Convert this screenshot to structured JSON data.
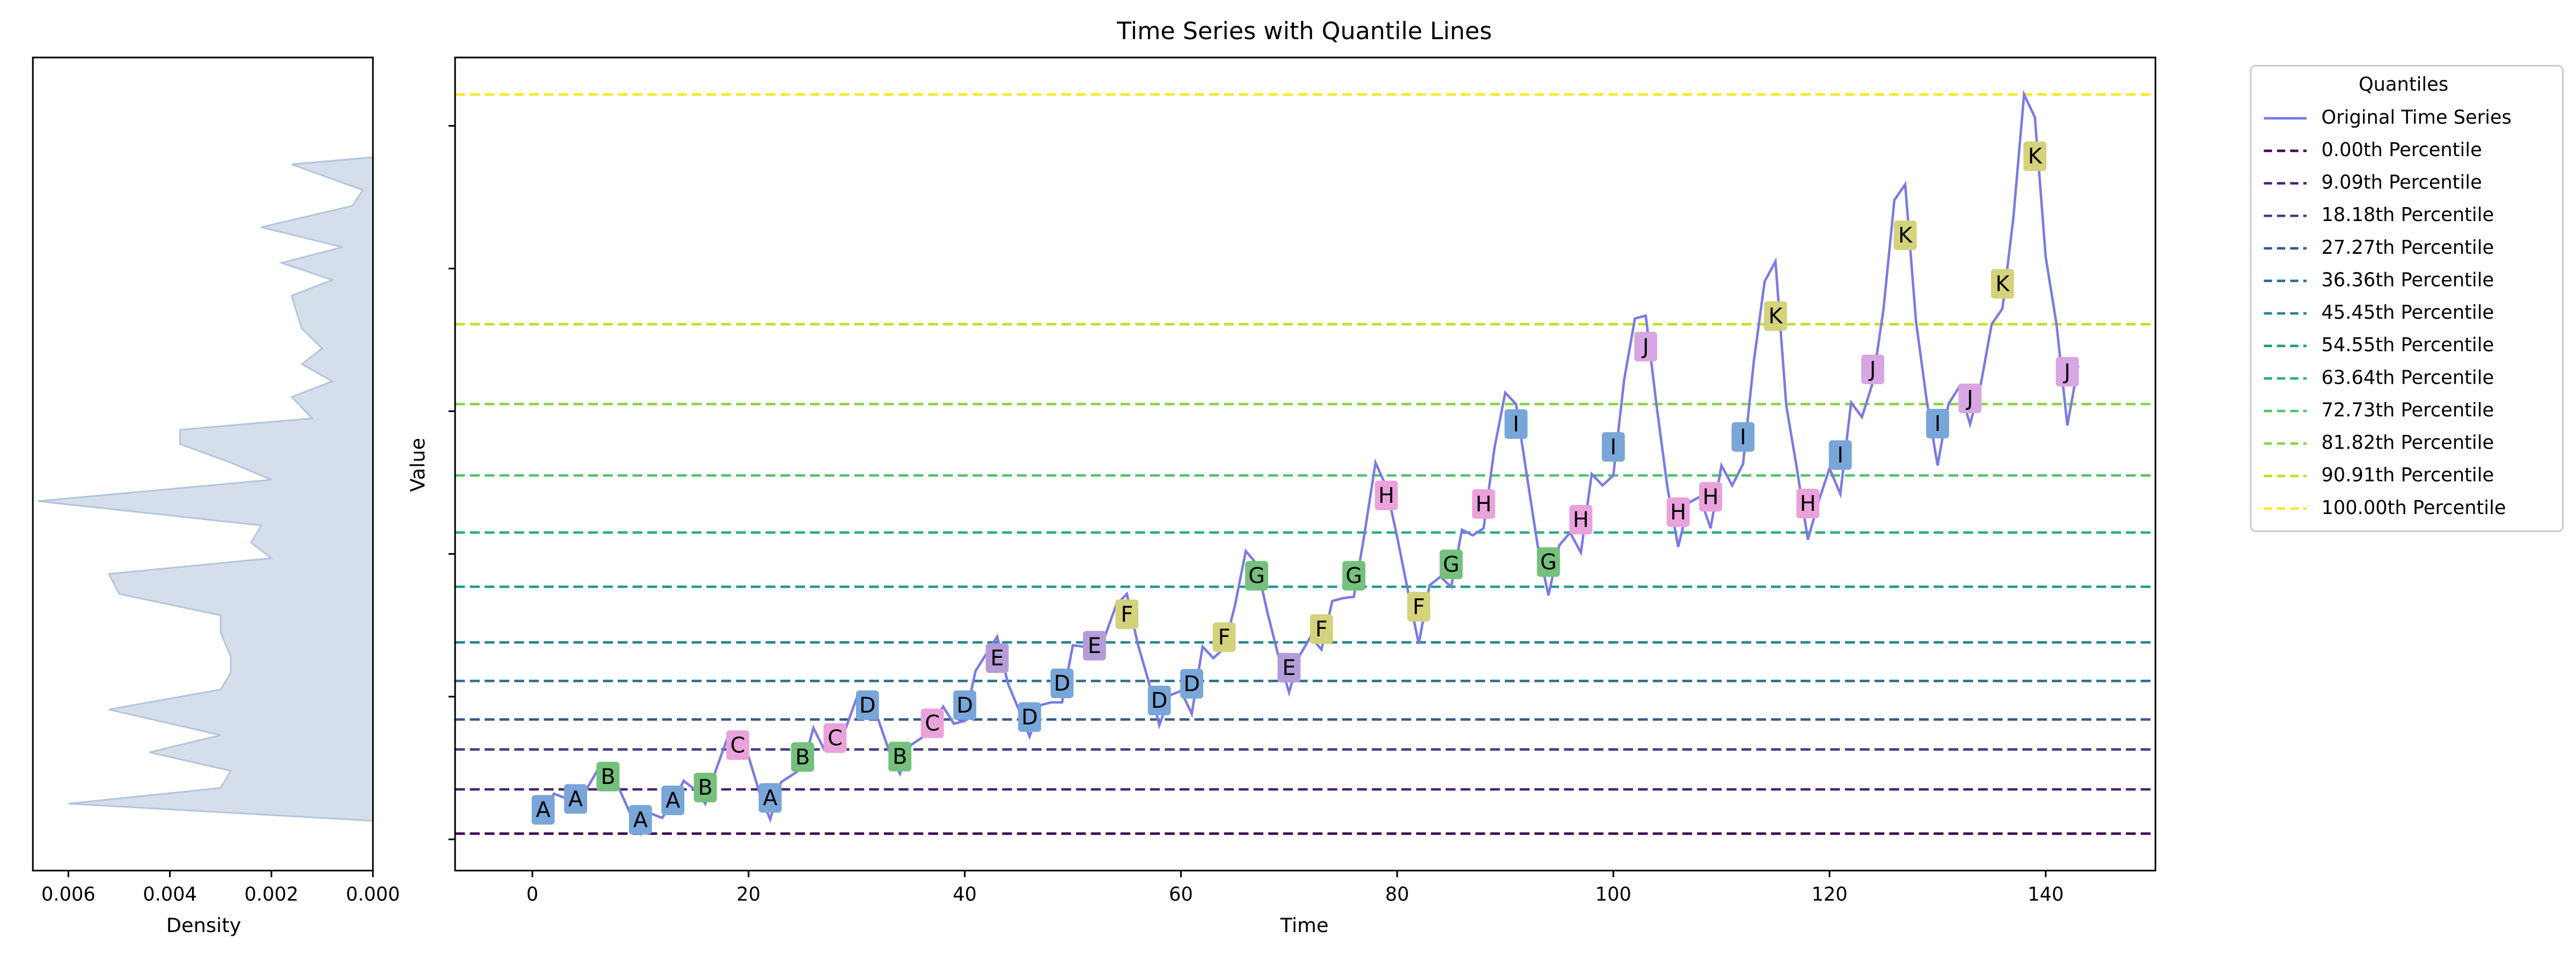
{
  "chart_data": [
    {
      "type": "density",
      "xlabel": "Density",
      "levels": [
        113,
        125,
        136,
        148,
        161,
        173,
        191,
        205,
        217,
        228,
        245,
        257,
        272,
        286,
        297,
        308,
        320,
        337,
        352,
        364,
        377,
        387,
        395,
        410,
        421,
        433,
        444,
        458,
        469,
        481,
        492,
        504,
        515,
        529,
        544,
        555,
        573,
        578
      ],
      "density": [
        0,
        0.006,
        0.003,
        0.0028,
        0.0044,
        0.003,
        0.0052,
        0.003,
        0.0028,
        0.0028,
        0.003,
        0.003,
        0.005,
        0.0052,
        0.002,
        0.0024,
        0.0022,
        0.0066,
        0.002,
        0.0028,
        0.0038,
        0.0038,
        0.0012,
        0.0016,
        0.0008,
        0.0014,
        0.001,
        0.0014,
        0.0015,
        0.0016,
        0.0008,
        0.0018,
        0.0006,
        0.0022,
        0.0004,
        0.0002,
        0.0016,
        0
      ],
      "color": "#d5dfeb",
      "edge_color": "#b4c5db",
      "xlim": [
        0.0067,
        0
      ],
      "xticks": [
        0.006,
        0.004,
        0.002,
        {
          "value": 0,
          "label": "0.000"
        }
      ]
    },
    {
      "type": "line",
      "title": "Time Series with Quantile Lines",
      "xlabel": "Time",
      "ylabel": "Value",
      "x": [
        0,
        1,
        2,
        3,
        4,
        5,
        6,
        7,
        8,
        9,
        10,
        11,
        12,
        13,
        14,
        15,
        16,
        17,
        18,
        19,
        20,
        21,
        22,
        23,
        24,
        25,
        26,
        27,
        28,
        29,
        30,
        31,
        32,
        33,
        34,
        35,
        36,
        37,
        38,
        39,
        40,
        41,
        42,
        43,
        44,
        45,
        46,
        47,
        48,
        49,
        50,
        51,
        52,
        53,
        54,
        55,
        56,
        57,
        58,
        59,
        60,
        61,
        62,
        63,
        64,
        65,
        66,
        67,
        68,
        69,
        70,
        71,
        72,
        73,
        74,
        75,
        76,
        77,
        78,
        79,
        80,
        81,
        82,
        83,
        84,
        85,
        86,
        87,
        88,
        89,
        90,
        91,
        92,
        93,
        94,
        95,
        96,
        97,
        98,
        99,
        100,
        101,
        102,
        103,
        104,
        105,
        106,
        107,
        108,
        109,
        110,
        111,
        112,
        113,
        114,
        115,
        116,
        117,
        118,
        119,
        120,
        121,
        122,
        123,
        124,
        125,
        126,
        127,
        128,
        129,
        130,
        131,
        132,
        133,
        134,
        135,
        136,
        137,
        138,
        139,
        140,
        141,
        142,
        143
      ],
      "series": [
        {
          "name": "Original Time Series",
          "color": "#7a7ae6",
          "values": [
            112,
            118,
            132,
            129,
            121,
            135,
            148,
            148,
            136,
            119,
            104,
            118,
            115,
            126,
            141,
            135,
            125,
            149,
            170,
            170,
            158,
            133,
            114,
            140,
            145,
            150,
            178,
            163,
            172,
            178,
            199,
            199,
            184,
            162,
            146,
            166,
            171,
            180,
            193,
            181,
            183,
            218,
            230,
            242,
            209,
            191,
            172,
            194,
            196,
            196,
            236,
            235,
            229,
            243,
            264,
            272,
            237,
            211,
            180,
            201,
            204,
            188,
            235,
            227,
            234,
            264,
            302,
            293,
            259,
            229,
            203,
            229,
            242,
            233,
            267,
            269,
            270,
            315,
            364,
            347,
            312,
            274,
            237,
            278,
            284,
            277,
            317,
            313,
            318,
            374,
            413,
            405,
            355,
            306,
            271,
            306,
            315,
            301,
            356,
            348,
            355,
            422,
            465,
            467,
            404,
            347,
            305,
            336,
            340,
            318,
            362,
            348,
            363,
            435,
            491,
            505,
            404,
            359,
            310,
            337,
            360,
            342,
            406,
            396,
            420,
            472,
            548,
            559,
            463,
            407,
            362,
            405,
            417,
            391,
            419,
            461,
            472,
            535,
            622,
            606,
            508,
            461,
            390,
            432
          ]
        }
      ],
      "legend_title": "Quantiles",
      "quantiles": [
        {
          "name": "0.00th Percentile",
          "value": 104,
          "color": "#440154"
        },
        {
          "name": "9.09th Percentile",
          "value": 135,
          "color": "#482173"
        },
        {
          "name": "18.18th Percentile",
          "value": 163,
          "color": "#433e85"
        },
        {
          "name": "27.27th Percentile",
          "value": 184,
          "color": "#38588c"
        },
        {
          "name": "36.36th Percentile",
          "value": 211,
          "color": "#2d708e"
        },
        {
          "name": "45.45th Percentile",
          "value": 238,
          "color": "#25858e"
        },
        {
          "name": "54.55th Percentile",
          "value": 277,
          "color": "#1e9b8a"
        },
        {
          "name": "63.64th Percentile",
          "value": 315,
          "color": "#2ab07f"
        },
        {
          "name": "72.73th Percentile",
          "value": 355,
          "color": "#52c569"
        },
        {
          "name": "81.82th Percentile",
          "value": 405,
          "color": "#86d549"
        },
        {
          "name": "90.91th Percentile",
          "value": 461,
          "color": "#c2df23"
        },
        {
          "name": "100.00th Percentile",
          "value": 622,
          "color": "#fde725"
        }
      ],
      "annotations": {
        "x": [
          1,
          4,
          7,
          10,
          13,
          16,
          19,
          22,
          25,
          28,
          31,
          34,
          37,
          40,
          43,
          46,
          49,
          52,
          55,
          58,
          61,
          64,
          67,
          70,
          73,
          76,
          79,
          82,
          85,
          88,
          91,
          94,
          97,
          100,
          103,
          106,
          109,
          112,
          115,
          118,
          121,
          124,
          127,
          130,
          133,
          136,
          139,
          142
        ],
        "values": [
          120.7,
          128.3,
          144,
          113.7,
          127.3,
          136.3,
          166,
          129,
          157.7,
          171,
          194,
          158,
          181.3,
          194,
          227,
          185.7,
          209.3,
          235.7,
          257.7,
          197.3,
          209,
          241.7,
          284.7,
          220.3,
          247.3,
          284.7,
          341,
          263,
          292.7,
          335,
          391,
          294.3,
          324,
          375,
          445.3,
          329.3,
          340,
          382,
          466.7,
          335.3,
          369.3,
          429.3,
          523.3,
          391.3,
          409,
          489.3,
          578.7,
          427.7
        ],
        "labels": [
          "A",
          "A",
          "B",
          "A",
          "A",
          "B",
          "C",
          "A",
          "B",
          "C",
          "D",
          "B",
          "C",
          "D",
          "E",
          "D",
          "D",
          "E",
          "F",
          "D",
          "D",
          "F",
          "G",
          "E",
          "F",
          "G",
          "H",
          "F",
          "G",
          "H",
          "I",
          "G",
          "H",
          "I",
          "J",
          "H",
          "H",
          "I",
          "K",
          "H",
          "I",
          "J",
          "K",
          "I",
          "J",
          "K",
          "K",
          "J"
        ]
      },
      "label_colors": {
        "A": "#78a6d8",
        "B": "#74c07c",
        "C": "#eaa2dc",
        "D": "#78a6d8",
        "E": "#b49cd8",
        "F": "#d4d27a",
        "G": "#74c07c",
        "H": "#eaa2dc",
        "I": "#78a6d8",
        "J": "#d8a6e2",
        "K": "#d4d27a"
      },
      "xlim": [
        -7.15,
        150.15
      ],
      "xticks": [
        0,
        20,
        40,
        60,
        80,
        100,
        120,
        140
      ],
      "ylim": [
        78.1,
        647.9
      ],
      "yticks": [
        100,
        200,
        300,
        400,
        500,
        600
      ],
      "ytick_labels": false
    }
  ]
}
